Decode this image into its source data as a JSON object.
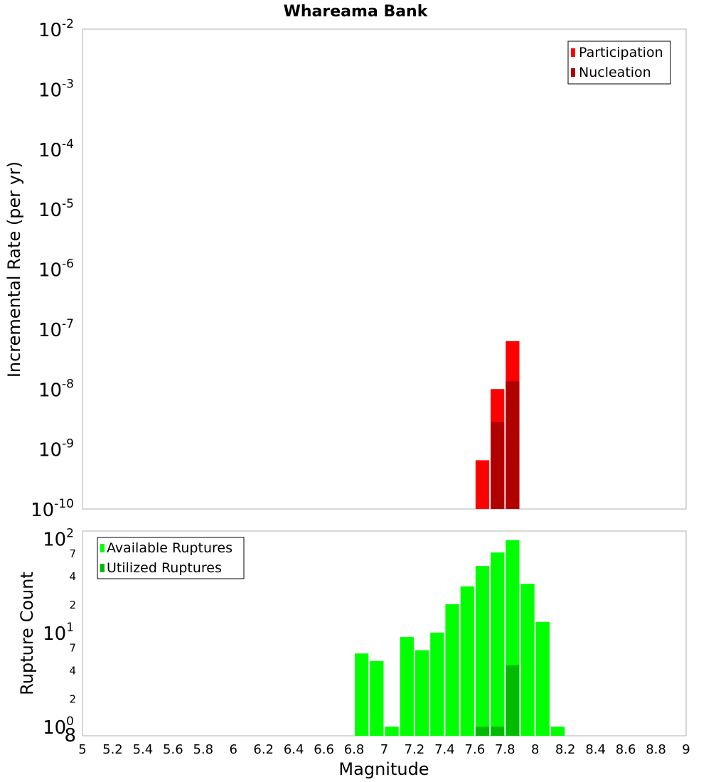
{
  "chart_data": [
    {
      "type": "bar",
      "title": "Whareama Bank",
      "xlabel": "",
      "ylabel": "Incremental Rate (per yr)",
      "yscale": "log",
      "xlim": [
        5,
        9
      ],
      "ylim": [
        1e-10,
        0.01
      ],
      "y_ticks": [
        {
          "base": "10",
          "exp": "-10"
        },
        {
          "base": "10",
          "exp": "-9"
        },
        {
          "base": "10",
          "exp": "-8"
        },
        {
          "base": "10",
          "exp": "-7"
        },
        {
          "base": "10",
          "exp": "-6"
        },
        {
          "base": "10",
          "exp": "-5"
        },
        {
          "base": "10",
          "exp": "-4"
        },
        {
          "base": "10",
          "exp": "-3"
        },
        {
          "base": "10",
          "exp": "-2"
        }
      ],
      "bin_width": 0.1,
      "legend": {
        "position": "top-right",
        "entries": [
          "Participation",
          "Nucleation"
        ]
      },
      "series": [
        {
          "name": "Participation",
          "color": "#ff0000",
          "x": [
            7.65,
            7.75,
            7.85
          ],
          "values": [
            6.5e-10,
            1e-08,
            6.3e-08
          ]
        },
        {
          "name": "Nucleation",
          "color": "#b00000",
          "x": [
            7.75,
            7.85
          ],
          "values": [
            2.8e-09,
            1.35e-08
          ]
        }
      ]
    },
    {
      "type": "bar",
      "title": "",
      "xlabel": "Magnitude",
      "ylabel": "Rupture Count",
      "yscale": "log",
      "xlim": [
        5,
        9
      ],
      "ylim": [
        0.8,
        120
      ],
      "x_ticks": [
        "5",
        "5.2",
        "5.4",
        "5.6",
        "5.8",
        "6",
        "6.2",
        "6.4",
        "6.6",
        "6.8",
        "7",
        "7.2",
        "7.4",
        "7.6",
        "7.8",
        "8",
        "8.2",
        "8.4",
        "8.6",
        "8.8",
        "9"
      ],
      "y_ticks": [
        {
          "base": "10",
          "exp": "0"
        },
        {
          "base": "10",
          "exp": "1"
        },
        {
          "base": "10",
          "exp": "2"
        }
      ],
      "y_minor_ticks": [
        {
          "label": "8",
          "value": 0.8
        },
        {
          "label": "2",
          "value": 2
        },
        {
          "label": "4",
          "value": 4
        },
        {
          "label": "7",
          "value": 7
        },
        {
          "label": "2",
          "value": 20
        },
        {
          "label": "4",
          "value": 40
        },
        {
          "label": "7",
          "value": 70
        }
      ],
      "bin_width": 0.1,
      "legend": {
        "position": "top-left",
        "entries": [
          "Available Ruptures",
          "Utilized Ruptures"
        ]
      },
      "series": [
        {
          "name": "Available Ruptures",
          "color": "#00ff00",
          "x": [
            6.85,
            6.95,
            7.05,
            7.15,
            7.25,
            7.35,
            7.45,
            7.55,
            7.65,
            7.75,
            7.85,
            7.95,
            8.05,
            8.15
          ],
          "values": [
            6,
            5,
            1,
            9,
            6.5,
            10,
            20,
            31,
            51,
            71,
            96,
            33,
            13,
            1
          ]
        },
        {
          "name": "Utilized Ruptures",
          "color": "#00bb00",
          "x": [
            7.65,
            7.75,
            7.85
          ],
          "values": [
            1,
            1,
            4.5
          ]
        }
      ]
    }
  ]
}
